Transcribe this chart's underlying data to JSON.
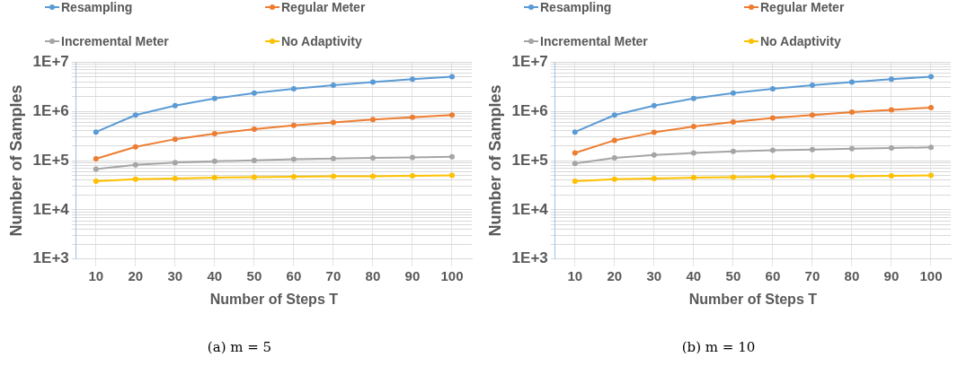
{
  "chart_data": [
    {
      "type": "line",
      "xlabel": "Number of Steps T",
      "ylabel": "Number of Samples",
      "annotations": [
        "(a)  m = 5"
      ],
      "categories": [
        "10",
        "20",
        "30",
        "40",
        "50",
        "60",
        "70",
        "80",
        "90",
        "100"
      ],
      "series": [
        {
          "name": "Resampling",
          "color": "#5b9bd5",
          "values": [
            380000,
            840000,
            1300000,
            1830000,
            2340000,
            2870000,
            3390000,
            3940000,
            4520000,
            5030000
          ]
        },
        {
          "name": "Regular Meter",
          "color": "#ed7d31",
          "values": [
            109000,
            190000,
            272000,
            353000,
            434000,
            518000,
            594000,
            681000,
            760000,
            840000
          ]
        },
        {
          "name": "Incremental Meter",
          "color": "#a5a5a5",
          "values": [
            67000,
            82000,
            91000,
            97000,
            101000,
            106000,
            110000,
            113000,
            116000,
            119000
          ]
        },
        {
          "name": "No Adaptivity",
          "color": "#ffc000",
          "values": [
            38000,
            42000,
            43000,
            45000,
            46000,
            47000,
            48000,
            48000,
            49000,
            50000
          ]
        }
      ],
      "log": "y",
      "ylim": [
        1000,
        10000000
      ],
      "yticks": [
        {
          "value": 1000,
          "label": "1E+3"
        },
        {
          "value": 2000,
          "label": null
        },
        {
          "value": 3000,
          "label": null
        },
        {
          "value": 4000,
          "label": null
        },
        {
          "value": 5000,
          "label": null
        },
        {
          "value": 6000,
          "label": null
        },
        {
          "value": 7000,
          "label": null
        },
        {
          "value": 8000,
          "label": null
        },
        {
          "value": 9000,
          "label": null
        },
        {
          "value": 10000,
          "label": "1E+4"
        },
        {
          "value": 20000,
          "label": null
        },
        {
          "value": 30000,
          "label": null
        },
        {
          "value": 40000,
          "label": null
        },
        {
          "value": 50000,
          "label": null
        },
        {
          "value": 60000,
          "label": null
        },
        {
          "value": 70000,
          "label": null
        },
        {
          "value": 80000,
          "label": null
        },
        {
          "value": 90000,
          "label": null
        },
        {
          "value": 100000,
          "label": "1E+5"
        },
        {
          "value": 200000,
          "label": null
        },
        {
          "value": 300000,
          "label": null
        },
        {
          "value": 400000,
          "label": null
        },
        {
          "value": 500000,
          "label": null
        },
        {
          "value": 600000,
          "label": null
        },
        {
          "value": 700000,
          "label": null
        },
        {
          "value": 800000,
          "label": null
        },
        {
          "value": 900000,
          "label": null
        },
        {
          "value": 1000000,
          "label": "1E+6"
        },
        {
          "value": 2000000,
          "label": null
        },
        {
          "value": 3000000,
          "label": null
        },
        {
          "value": 4000000,
          "label": null
        },
        {
          "value": 5000000,
          "label": null
        },
        {
          "value": 6000000,
          "label": null
        },
        {
          "value": 7000000,
          "label": null
        },
        {
          "value": 8000000,
          "label": null
        },
        {
          "value": 9000000,
          "label": null
        },
        {
          "value": 10000000,
          "label": "1E+7"
        }
      ],
      "grid": true,
      "legend": "top",
      "marker": "circle",
      "line_style": "solid"
    },
    {
      "type": "line",
      "xlabel": "Number of Steps T",
      "ylabel": "Number of Samples",
      "annotations": [
        "(b)  m = 10"
      ],
      "categories": [
        "10",
        "20",
        "30",
        "40",
        "50",
        "60",
        "70",
        "80",
        "90",
        "100"
      ],
      "series": [
        {
          "name": "Resampling",
          "color": "#5b9bd5",
          "values": [
            380000,
            840000,
            1300000,
            1830000,
            2340000,
            2870000,
            3390000,
            3940000,
            4520000,
            5030000
          ]
        },
        {
          "name": "Regular Meter",
          "color": "#ed7d31",
          "values": [
            143000,
            258000,
            373000,
            490000,
            610000,
            730000,
            840000,
            960000,
            1070000,
            1190000
          ]
        },
        {
          "name": "Incremental Meter",
          "color": "#a5a5a5",
          "values": [
            87000,
            113000,
            130000,
            143000,
            153000,
            162000,
            168000,
            175000,
            180000,
            185000
          ]
        },
        {
          "name": "No Adaptivity",
          "color": "#ffc000",
          "values": [
            38000,
            42000,
            43000,
            45000,
            46000,
            47000,
            48000,
            48000,
            49000,
            50000
          ]
        }
      ],
      "log": "y",
      "ylim": [
        1000,
        10000000
      ],
      "yticks": [
        {
          "value": 1000,
          "label": "1E+3"
        },
        {
          "value": 2000,
          "label": null
        },
        {
          "value": 3000,
          "label": null
        },
        {
          "value": 4000,
          "label": null
        },
        {
          "value": 5000,
          "label": null
        },
        {
          "value": 6000,
          "label": null
        },
        {
          "value": 7000,
          "label": null
        },
        {
          "value": 8000,
          "label": null
        },
        {
          "value": 9000,
          "label": null
        },
        {
          "value": 10000,
          "label": "1E+4"
        },
        {
          "value": 20000,
          "label": null
        },
        {
          "value": 30000,
          "label": null
        },
        {
          "value": 40000,
          "label": null
        },
        {
          "value": 50000,
          "label": null
        },
        {
          "value": 60000,
          "label": null
        },
        {
          "value": 70000,
          "label": null
        },
        {
          "value": 80000,
          "label": null
        },
        {
          "value": 90000,
          "label": null
        },
        {
          "value": 100000,
          "label": "1E+5"
        },
        {
          "value": 200000,
          "label": null
        },
        {
          "value": 300000,
          "label": null
        },
        {
          "value": 400000,
          "label": null
        },
        {
          "value": 500000,
          "label": null
        },
        {
          "value": 600000,
          "label": null
        },
        {
          "value": 700000,
          "label": null
        },
        {
          "value": 800000,
          "label": null
        },
        {
          "value": 900000,
          "label": null
        },
        {
          "value": 1000000,
          "label": "1E+6"
        },
        {
          "value": 2000000,
          "label": null
        },
        {
          "value": 3000000,
          "label": null
        },
        {
          "value": 4000000,
          "label": null
        },
        {
          "value": 5000000,
          "label": null
        },
        {
          "value": 6000000,
          "label": null
        },
        {
          "value": 7000000,
          "label": null
        },
        {
          "value": 8000000,
          "label": null
        },
        {
          "value": 9000000,
          "label": null
        },
        {
          "value": 10000000,
          "label": "1E+7"
        }
      ],
      "grid": true,
      "legend": "top",
      "marker": "circle",
      "line_style": "solid"
    }
  ]
}
